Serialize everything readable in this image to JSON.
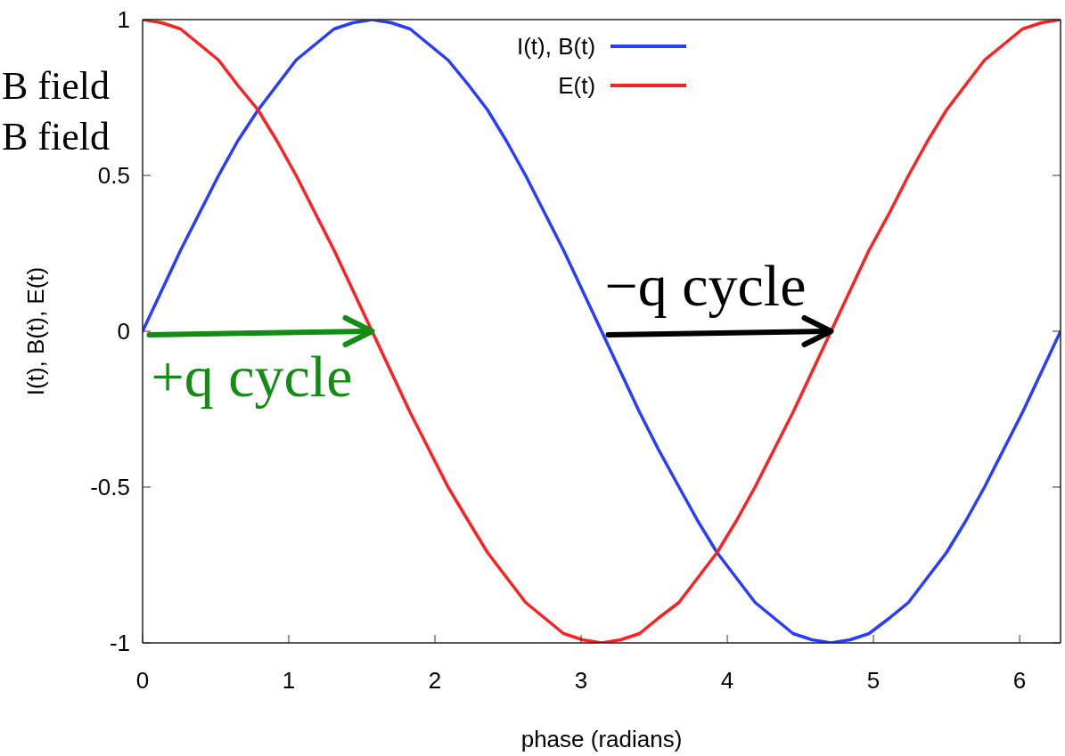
{
  "chart_data": {
    "type": "line",
    "xlabel": "phase (radians)",
    "ylabel": "I(t), B(t), E(t)",
    "x": [
      0,
      0.13,
      0.26,
      0.39,
      0.52,
      0.65,
      0.79,
      0.92,
      1.05,
      1.18,
      1.31,
      1.44,
      1.57,
      1.7,
      1.83,
      1.96,
      2.09,
      2.23,
      2.36,
      2.49,
      2.62,
      2.75,
      2.88,
      3.01,
      3.14,
      3.27,
      3.4,
      3.53,
      3.67,
      3.8,
      3.93,
      4.06,
      4.19,
      4.32,
      4.45,
      4.58,
      4.71,
      4.84,
      4.97,
      5.11,
      5.24,
      5.37,
      5.5,
      5.63,
      5.76,
      5.89,
      6.02,
      6.15,
      6.28
    ],
    "series": [
      {
        "name": "I(t), B(t)",
        "color": "#2a3cff",
        "values": [
          0,
          0.13,
          0.26,
          0.38,
          0.5,
          0.61,
          0.71,
          0.79,
          0.87,
          0.92,
          0.97,
          0.99,
          1,
          0.99,
          0.97,
          0.92,
          0.87,
          0.79,
          0.71,
          0.61,
          0.5,
          0.38,
          0.26,
          0.13,
          0,
          -0.13,
          -0.26,
          -0.38,
          -0.5,
          -0.61,
          -0.71,
          -0.79,
          -0.87,
          -0.92,
          -0.97,
          -0.99,
          -1,
          -0.99,
          -0.97,
          -0.92,
          -0.87,
          -0.79,
          -0.71,
          -0.61,
          -0.5,
          -0.38,
          -0.26,
          -0.13,
          0
        ]
      },
      {
        "name": "E(t)",
        "color": "#ff2121",
        "values": [
          1,
          0.99,
          0.97,
          0.92,
          0.87,
          0.79,
          0.71,
          0.61,
          0.5,
          0.38,
          0.26,
          0.13,
          0,
          -0.13,
          -0.26,
          -0.38,
          -0.5,
          -0.61,
          -0.71,
          -0.79,
          -0.87,
          -0.92,
          -0.97,
          -0.99,
          -1,
          -0.99,
          -0.97,
          -0.92,
          -0.87,
          -0.79,
          -0.71,
          -0.61,
          -0.5,
          -0.38,
          -0.26,
          -0.13,
          0,
          0.13,
          0.26,
          0.38,
          0.5,
          0.61,
          0.71,
          0.79,
          0.87,
          0.92,
          0.97,
          0.99,
          1
        ]
      }
    ],
    "xlim": [
      0,
      6.28
    ],
    "ylim": [
      -1,
      1
    ],
    "xticks": [
      0,
      1,
      2,
      3,
      4,
      5,
      6
    ],
    "yticks": [
      -1,
      -0.5,
      0,
      0.5,
      1
    ],
    "legend": "top",
    "annotations": [
      "B field",
      "B field",
      {
        "text": "+q cycle",
        "x": 1.57,
        "y": 0
      },
      {
        "text": "−q cycle",
        "x": 4.71,
        "y": 0
      }
    ]
  }
}
